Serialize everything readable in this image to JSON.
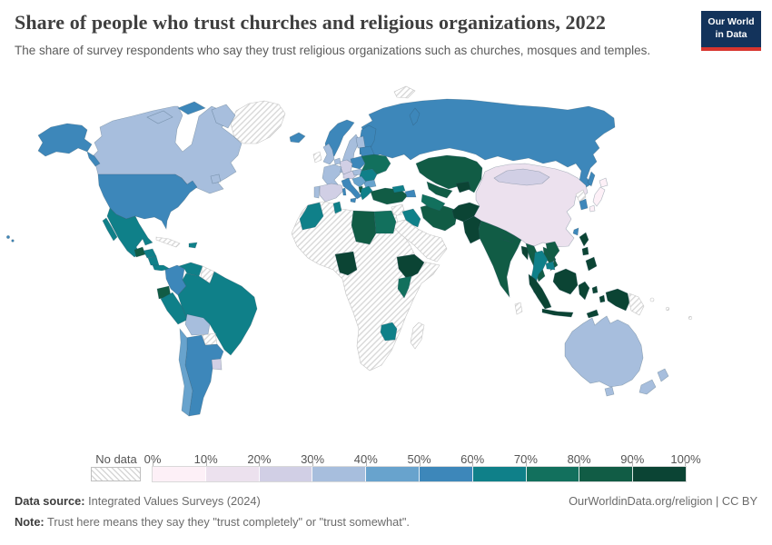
{
  "header": {
    "title": "Share of people who trust churches and religious organizations, 2022",
    "subtitle": "The share of survey respondents who say they trust religious organizations such as churches, mosques and temples.",
    "logo_line1": "Our World",
    "logo_line2": "in Data",
    "logo_bg": "#13335b",
    "logo_accent": "#d8352e"
  },
  "legend": {
    "no_data_label": "No data",
    "tick_labels": [
      "0%",
      "10%",
      "20%",
      "30%",
      "40%",
      "50%",
      "60%",
      "70%",
      "80%",
      "90%",
      "100%"
    ]
  },
  "footer": {
    "source_label": "Data source:",
    "source_text": " Integrated Values Surveys (2024)",
    "link_text": "OurWorldinData.org/religion | CC BY",
    "note_label": "Note:",
    "note_text": " Trust here means they say they \"trust completely\" or \"trust somewhat\"."
  },
  "chart_data": {
    "type": "heatmap",
    "subtype": "world-choropleth",
    "title": "Share of people who trust churches and religious organizations, 2022",
    "unit": "%",
    "legend_position": "bottom",
    "bins": [
      "0-10%",
      "10-20%",
      "20-30%",
      "30-40%",
      "40-50%",
      "50-60%",
      "60-70%",
      "70-80%",
      "80-90%",
      "90-100%"
    ],
    "bin_colors": [
      "#fdf0f7",
      "#ece1ee",
      "#d1cfe5",
      "#a7bedd",
      "#68a3cd",
      "#3d87ba",
      "#0f8089",
      "#12705d",
      "#115c45",
      "#0b4434"
    ],
    "no_data_label": "No data",
    "regions": [
      {
        "id": "canada",
        "name": "Canada",
        "bin": 3
      },
      {
        "id": "usa",
        "name": "United States",
        "bin": 5
      },
      {
        "id": "greenland",
        "name": "Greenland",
        "bin": -1
      },
      {
        "id": "iceland",
        "name": "Iceland",
        "bin": 5
      },
      {
        "id": "mexico",
        "name": "Mexico",
        "bin": 6
      },
      {
        "id": "guatemala",
        "name": "Guatemala",
        "bin": 8
      },
      {
        "id": "honduras",
        "name": "Honduras",
        "bin": 6
      },
      {
        "id": "nicaragua",
        "name": "Nicaragua",
        "bin": 6
      },
      {
        "id": "panama",
        "name": "Panama",
        "bin": 6
      },
      {
        "id": "cuba",
        "name": "Cuba",
        "bin": -1
      },
      {
        "id": "dominican-republic",
        "name": "Dominican Republic",
        "bin": 6
      },
      {
        "id": "colombia",
        "name": "Colombia",
        "bin": 5
      },
      {
        "id": "venezuela",
        "name": "Venezuela",
        "bin": 6
      },
      {
        "id": "guyana",
        "name": "Guyana & Suriname",
        "bin": -1
      },
      {
        "id": "ecuador",
        "name": "Ecuador",
        "bin": 8
      },
      {
        "id": "peru",
        "name": "Peru",
        "bin": 6
      },
      {
        "id": "brazil",
        "name": "Brazil",
        "bin": 6
      },
      {
        "id": "bolivia",
        "name": "Bolivia",
        "bin": 3
      },
      {
        "id": "paraguay",
        "name": "Paraguay",
        "bin": -1
      },
      {
        "id": "uruguay",
        "name": "Uruguay",
        "bin": 2
      },
      {
        "id": "argentina",
        "name": "Argentina",
        "bin": 5
      },
      {
        "id": "chile",
        "name": "Chile",
        "bin": 4
      },
      {
        "id": "united-kingdom",
        "name": "United Kingdom",
        "bin": 3
      },
      {
        "id": "ireland",
        "name": "Ireland",
        "bin": -1
      },
      {
        "id": "france",
        "name": "France",
        "bin": 3
      },
      {
        "id": "spain",
        "name": "Spain",
        "bin": 2
      },
      {
        "id": "portugal",
        "name": "Portugal",
        "bin": 3
      },
      {
        "id": "germany",
        "name": "Germany",
        "bin": 2
      },
      {
        "id": "benelux",
        "name": "Netherlands & Belgium",
        "bin": 3
      },
      {
        "id": "denmark",
        "name": "Denmark",
        "bin": 3
      },
      {
        "id": "norway",
        "name": "Norway",
        "bin": 5
      },
      {
        "id": "sweden",
        "name": "Sweden",
        "bin": 3
      },
      {
        "id": "finland",
        "name": "Finland",
        "bin": 5
      },
      {
        "id": "baltics",
        "name": "Baltic states",
        "bin": 3
      },
      {
        "id": "belarus",
        "name": "Belarus",
        "bin": 5
      },
      {
        "id": "poland",
        "name": "Poland",
        "bin": 5
      },
      {
        "id": "czechia-austria",
        "name": "Czechia & Austria",
        "bin": 2
      },
      {
        "id": "hungary-slovakia",
        "name": "Hungary & Slovakia",
        "bin": 3
      },
      {
        "id": "ukraine",
        "name": "Ukraine",
        "bin": 7
      },
      {
        "id": "romania",
        "name": "Romania",
        "bin": 6
      },
      {
        "id": "bulgaria",
        "name": "Bulgaria",
        "bin": 4
      },
      {
        "id": "western-balkans",
        "name": "Serbia & Western Balkans",
        "bin": 4
      },
      {
        "id": "albania",
        "name": "Albania",
        "bin": 8
      },
      {
        "id": "greece",
        "name": "Greece",
        "bin": 6
      },
      {
        "id": "italy",
        "name": "Italy",
        "bin": 5
      },
      {
        "id": "russia",
        "name": "Russia",
        "bin": 5
      },
      {
        "id": "svalbard",
        "name": "Svalbard",
        "bin": -1
      },
      {
        "id": "turkey",
        "name": "Turkey",
        "bin": 8
      },
      {
        "id": "georgia",
        "name": "Georgia",
        "bin": 6
      },
      {
        "id": "azerbaijan",
        "name": "Azerbaijan",
        "bin": 5
      },
      {
        "id": "syria",
        "name": "Syria",
        "bin": -1
      },
      {
        "id": "jordan",
        "name": "Jordan & Israel",
        "bin": -1
      },
      {
        "id": "iraq",
        "name": "Iraq",
        "bin": 6
      },
      {
        "id": "iran",
        "name": "Iran",
        "bin": 8
      },
      {
        "id": "saudi-arabia",
        "name": "Saudi Arabia & Arabian Peninsula",
        "bin": -1
      },
      {
        "id": "africa-nodata",
        "name": "Other Africa",
        "bin": -1
      },
      {
        "id": "morocco",
        "name": "Morocco",
        "bin": 6
      },
      {
        "id": "tunisia",
        "name": "Tunisia",
        "bin": 6
      },
      {
        "id": "libya",
        "name": "Libya",
        "bin": 8
      },
      {
        "id": "egypt",
        "name": "Egypt",
        "bin": 7
      },
      {
        "id": "nigeria",
        "name": "Nigeria",
        "bin": 9
      },
      {
        "id": "ethiopia",
        "name": "Ethiopia",
        "bin": 9
      },
      {
        "id": "kenya",
        "name": "Kenya",
        "bin": 7
      },
      {
        "id": "zimbabwe",
        "name": "Zimbabwe",
        "bin": 6
      },
      {
        "id": "madagascar",
        "name": "Madagascar",
        "bin": -1
      },
      {
        "id": "kazakhstan",
        "name": "Kazakhstan",
        "bin": 8
      },
      {
        "id": "uzbekistan",
        "name": "Uzbekistan",
        "bin": 8
      },
      {
        "id": "turkmenistan",
        "name": "Turkmenistan",
        "bin": 7
      },
      {
        "id": "kyrgyzstan-tajikistan",
        "name": "Kyrgyzstan & Tajikistan",
        "bin": 9
      },
      {
        "id": "afghanistan",
        "name": "Afghanistan",
        "bin": 9
      },
      {
        "id": "pakistan",
        "name": "Pakistan",
        "bin": 9
      },
      {
        "id": "india",
        "name": "India",
        "bin": 8
      },
      {
        "id": "nepal",
        "name": "Nepal",
        "bin": 8
      },
      {
        "id": "sri-lanka",
        "name": "Sri Lanka",
        "bin": -1
      },
      {
        "id": "bangladesh",
        "name": "Bangladesh",
        "bin": 9
      },
      {
        "id": "china",
        "name": "China",
        "bin": 1
      },
      {
        "id": "mongolia",
        "name": "Mongolia",
        "bin": 2
      },
      {
        "id": "north-korea",
        "name": "North Korea",
        "bin": -1
      },
      {
        "id": "south-korea",
        "name": "South Korea",
        "bin": 5
      },
      {
        "id": "japan",
        "name": "Japan",
        "bin": 0
      },
      {
        "id": "taiwan",
        "name": "Taiwan",
        "bin": 5
      },
      {
        "id": "myanmar",
        "name": "Myanmar",
        "bin": 8
      },
      {
        "id": "thailand",
        "name": "Thailand",
        "bin": 6
      },
      {
        "id": "laos",
        "name": "Laos",
        "bin": 8
      },
      {
        "id": "vietnam",
        "name": "Vietnam",
        "bin": 8
      },
      {
        "id": "cambodia",
        "name": "Cambodia",
        "bin": 6
      },
      {
        "id": "malaysia",
        "name": "Malaysia",
        "bin": 9
      },
      {
        "id": "philippines",
        "name": "Philippines",
        "bin": 9
      },
      {
        "id": "indonesia",
        "name": "Indonesia",
        "bin": 9
      },
      {
        "id": "papua-new-guinea",
        "name": "Papua New Guinea",
        "bin": -1
      },
      {
        "id": "pacific-islands",
        "name": "Pacific islands",
        "bin": -1
      },
      {
        "id": "australia",
        "name": "Australia",
        "bin": 3
      },
      {
        "id": "new-zealand",
        "name": "New Zealand",
        "bin": 3
      }
    ]
  }
}
